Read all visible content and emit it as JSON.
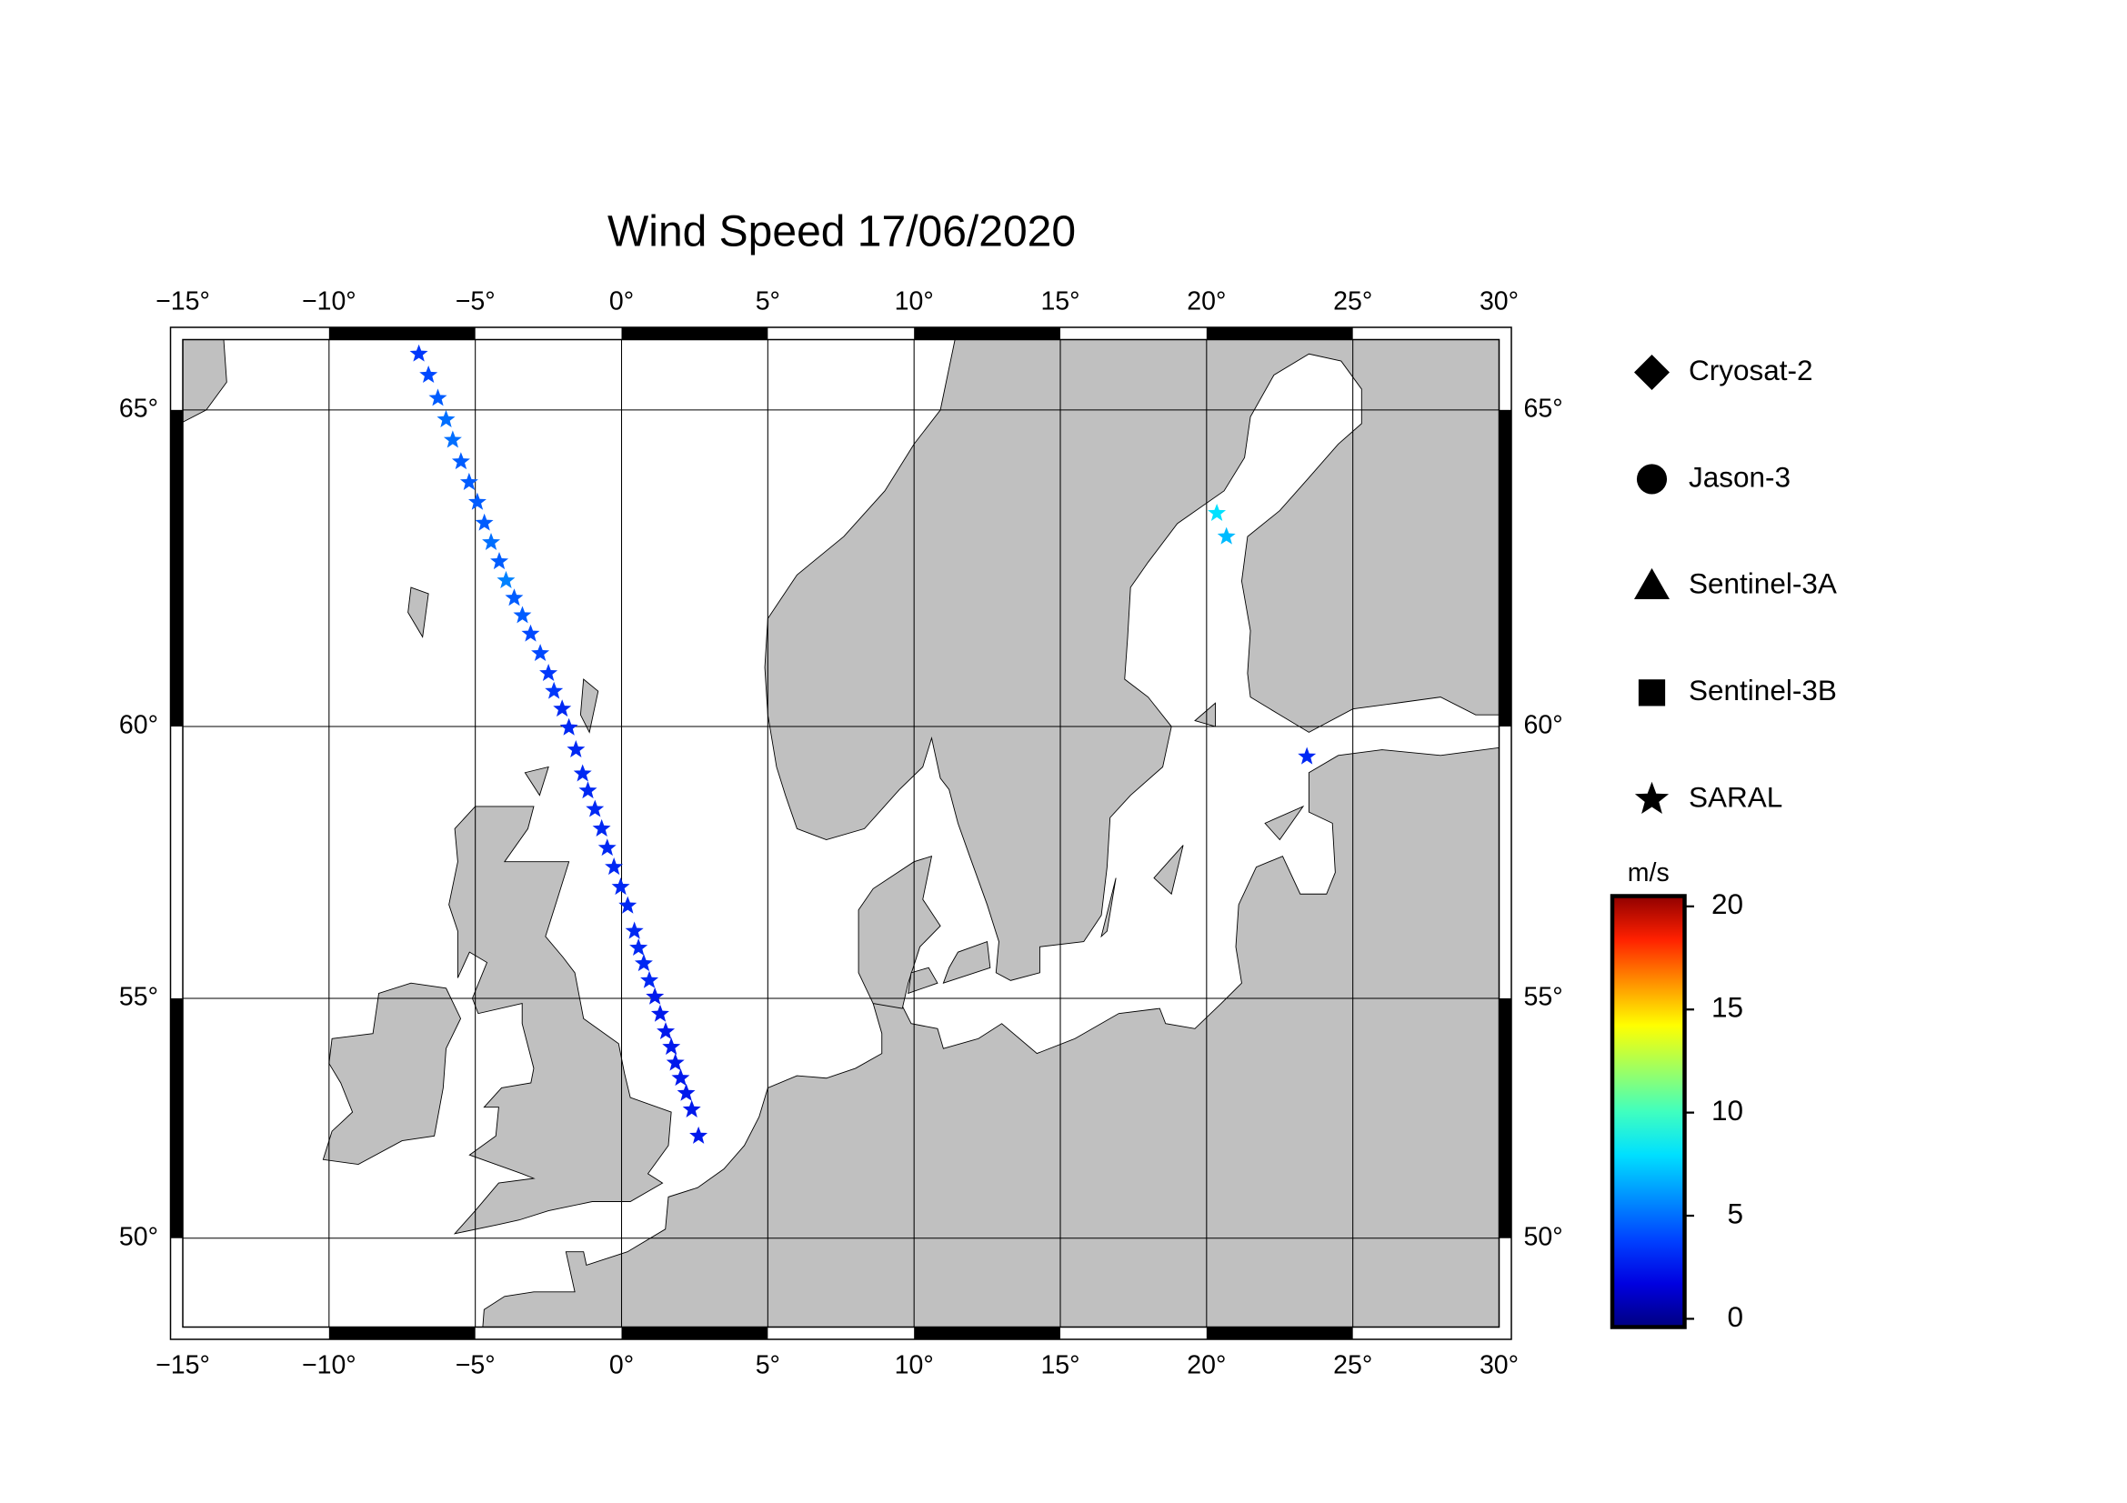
{
  "chart_data": {
    "type": "scatter",
    "title": "Wind Speed 17/06/2020",
    "projection": "mercator",
    "xlim": [
      -15,
      30
    ],
    "ylim": [
      48,
      66
    ],
    "xticks": [
      {
        "value": -15,
        "label": "−15°"
      },
      {
        "value": -10,
        "label": "−10°"
      },
      {
        "value": -5,
        "label": "−5°"
      },
      {
        "value": 0,
        "label": "0°"
      },
      {
        "value": 5,
        "label": "5°"
      },
      {
        "value": 10,
        "label": "10°"
      },
      {
        "value": 15,
        "label": "15°"
      },
      {
        "value": 20,
        "label": "20°"
      },
      {
        "value": 25,
        "label": "25°"
      },
      {
        "value": 30,
        "label": "30°"
      }
    ],
    "yticks": [
      {
        "value": 50,
        "label": "50°"
      },
      {
        "value": 55,
        "label": "55°"
      },
      {
        "value": 60,
        "label": "60°"
      },
      {
        "value": 65,
        "label": "65°"
      }
    ],
    "grid": true,
    "land_color": "#c0c0c0",
    "series": [
      {
        "name": "Cryosat-2",
        "marker": "diamond",
        "x": [],
        "y": [],
        "values": []
      },
      {
        "name": "Jason-3",
        "marker": "circle",
        "x": [],
        "y": [],
        "values": []
      },
      {
        "name": "Sentinel-3A",
        "marker": "triangle",
        "x": [],
        "y": [],
        "values": []
      },
      {
        "name": "Sentinel-3B",
        "marker": "square",
        "x": [],
        "y": [],
        "values": []
      },
      {
        "name": "SARAL",
        "marker": "star",
        "x": [
          -6.93,
          -6.6,
          -6.28,
          -6.0,
          -5.77,
          -5.49,
          -5.21,
          -4.93,
          -4.69,
          -4.46,
          -4.18,
          -3.95,
          -3.67,
          -3.39,
          -3.11,
          -2.78,
          -2.5,
          -2.31,
          -2.03,
          -1.8,
          -1.56,
          -1.33,
          -1.15,
          -0.91,
          -0.68,
          -0.49,
          -0.26,
          -0.03,
          0.21,
          0.44,
          0.58,
          0.76,
          0.95,
          1.14,
          1.32,
          1.51,
          1.7,
          1.84,
          2.02,
          2.21,
          2.4,
          2.63,
          20.35,
          20.68,
          23.43
        ],
        "y": [
          65.8,
          65.5,
          65.17,
          64.86,
          64.56,
          64.24,
          63.93,
          63.63,
          63.31,
          63.01,
          62.71,
          62.41,
          62.13,
          61.85,
          61.55,
          61.23,
          60.9,
          60.6,
          60.3,
          59.98,
          59.6,
          59.18,
          58.88,
          58.55,
          58.2,
          57.85,
          57.5,
          57.13,
          56.78,
          56.3,
          55.98,
          55.68,
          55.35,
          55.03,
          54.69,
          54.34,
          54.03,
          53.71,
          53.4,
          53.09,
          52.75,
          52.2,
          63.46,
          63.1,
          59.48
        ],
        "values": [
          3.5,
          4,
          4.5,
          5,
          5,
          4.5,
          4.5,
          4.5,
          4.5,
          5,
          4.5,
          5.5,
          4.5,
          4.5,
          4,
          4,
          3.5,
          3.5,
          3,
          3,
          3,
          3,
          3,
          3,
          3,
          3,
          3,
          3,
          3,
          3,
          3,
          3,
          3,
          2.5,
          2.5,
          2.5,
          2.5,
          2.5,
          2.5,
          2.5,
          2.5,
          2.5,
          8,
          7,
          3
        ]
      }
    ],
    "colorbar": {
      "label": "m/s",
      "lim": [
        -0.4,
        20.5
      ],
      "ticks": [
        0,
        5,
        10,
        15,
        20
      ],
      "colormap": [
        "#000080",
        "#0000e0",
        "#0040ff",
        "#0090ff",
        "#00e0ff",
        "#40ffbf",
        "#a0ff60",
        "#ffff00",
        "#ff9000",
        "#ff2000",
        "#900000"
      ]
    }
  }
}
